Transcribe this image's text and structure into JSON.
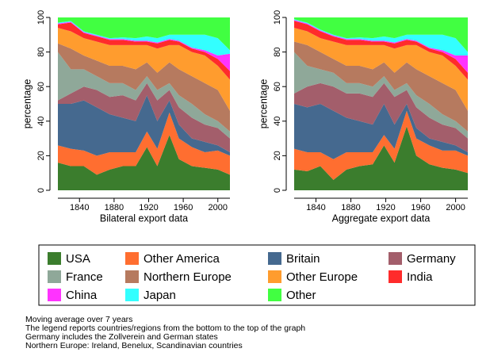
{
  "chart_data": [
    {
      "type": "area",
      "xlabel": "Bilateral export data",
      "ylabel": "percentage",
      "x": [
        1815,
        1830,
        1845,
        1860,
        1875,
        1890,
        1905,
        1918,
        1930,
        1944,
        1955,
        1970,
        1985,
        2000,
        2014
      ],
      "xlim": [
        1815,
        2014
      ],
      "xticks": [
        1840,
        1880,
        1920,
        1960,
        2000
      ],
      "ylim": [
        0,
        100
      ],
      "yticks": [
        0,
        20,
        40,
        60,
        80,
        100
      ],
      "series": [
        {
          "name": "USA",
          "color": "#3b7d2d",
          "values": [
            16,
            14,
            14,
            9,
            12,
            14,
            14,
            25,
            14,
            32,
            18,
            14,
            13,
            12,
            9
          ]
        },
        {
          "name": "Other America",
          "color": "#ff6e30",
          "values": [
            10,
            10,
            9,
            11,
            10,
            8,
            8,
            9,
            10,
            13,
            12,
            11,
            9,
            11,
            11
          ]
        },
        {
          "name": "Britain",
          "color": "#45698f",
          "values": [
            24,
            26,
            29,
            28,
            22,
            20,
            18,
            21,
            16,
            7,
            8,
            5,
            6,
            3,
            2
          ]
        },
        {
          "name": "Germany",
          "color": "#a35e6b",
          "values": [
            2,
            6,
            8,
            10,
            10,
            13,
            12,
            7,
            12,
            6,
            10,
            12,
            10,
            10,
            8
          ]
        },
        {
          "name": "France",
          "color": "#8fa899",
          "values": [
            28,
            14,
            10,
            8,
            8,
            7,
            6,
            4,
            6,
            4,
            7,
            8,
            6,
            4,
            4
          ]
        },
        {
          "name": "Northern Europe",
          "color": "#b67a5f",
          "values": [
            5,
            12,
            8,
            9,
            10,
            10,
            12,
            8,
            10,
            12,
            15,
            16,
            18,
            18,
            12
          ]
        },
        {
          "name": "Other Europe",
          "color": "#ff9c2e",
          "values": [
            9,
            10,
            10,
            11,
            12,
            12,
            14,
            10,
            14,
            10,
            14,
            14,
            16,
            14,
            18
          ]
        },
        {
          "name": "India",
          "color": "#ff2b2b",
          "values": [
            2,
            5,
            3,
            3,
            3,
            3,
            2,
            2,
            3,
            3,
            2,
            2,
            2,
            4,
            5
          ]
        },
        {
          "name": "China",
          "color": "#ff33ff",
          "values": [
            0.5,
            0.5,
            0.5,
            0.5,
            0.5,
            0.5,
            0.5,
            0.5,
            0.5,
            0.5,
            0.5,
            0.5,
            1,
            2,
            10
          ]
        },
        {
          "name": "Japan",
          "color": "#33ffff",
          "values": [
            0.5,
            0.5,
            0.5,
            0.5,
            0.5,
            1,
            1.5,
            2.5,
            2.5,
            2.5,
            3.5,
            7.5,
            9,
            10,
            2
          ]
        },
        {
          "name": "Other",
          "color": "#41ff41",
          "values": [
            3,
            2,
            8,
            10,
            12,
            11.5,
            12,
            11,
            12,
            10,
            10,
            10,
            10,
            12,
            19
          ]
        }
      ]
    },
    {
      "type": "area",
      "xlabel": "Aggregate export data",
      "ylabel": "percentage",
      "x": [
        1815,
        1830,
        1845,
        1860,
        1875,
        1890,
        1905,
        1918,
        1930,
        1944,
        1955,
        1970,
        1985,
        2000,
        2014
      ],
      "xlim": [
        1815,
        2014
      ],
      "xticks": [
        1840,
        1880,
        1920,
        1960,
        2000
      ],
      "ylim": [
        0,
        100
      ],
      "yticks": [
        0,
        20,
        40,
        60,
        80,
        100
      ],
      "series": [
        {
          "values": [
            12,
            11,
            14,
            6,
            12,
            14,
            15,
            26,
            16,
            37,
            20,
            15,
            13,
            12,
            10
          ]
        },
        {
          "values": [
            12,
            11,
            8,
            12,
            10,
            8,
            7,
            6,
            8,
            9,
            10,
            11,
            10,
            11,
            10
          ]
        },
        {
          "values": [
            26,
            26,
            28,
            28,
            20,
            18,
            16,
            18,
            14,
            4,
            6,
            4,
            5,
            3,
            2
          ]
        },
        {
          "values": [
            6,
            12,
            12,
            14,
            14,
            16,
            16,
            12,
            16,
            8,
            12,
            12,
            10,
            10,
            8
          ]
        },
        {
          "values": [
            24,
            12,
            8,
            8,
            6,
            6,
            6,
            4,
            4,
            4,
            7,
            8,
            6,
            4,
            4
          ]
        },
        {
          "values": [
            6,
            12,
            10,
            8,
            10,
            10,
            10,
            8,
            10,
            12,
            15,
            16,
            18,
            18,
            12
          ]
        },
        {
          "values": [
            8,
            8,
            8,
            10,
            12,
            12,
            14,
            10,
            14,
            10,
            14,
            14,
            16,
            14,
            18
          ]
        },
        {
          "values": [
            4,
            4,
            4,
            3,
            3,
            3,
            2,
            2,
            3,
            3,
            2,
            2,
            2,
            4,
            4
          ]
        },
        {
          "values": [
            0.5,
            0.5,
            0.5,
            0.5,
            0.5,
            0.5,
            0.5,
            0.5,
            0.5,
            0.5,
            0.5,
            0.5,
            1,
            2,
            10
          ]
        },
        {
          "values": [
            0.5,
            0.5,
            0.5,
            0.5,
            0.5,
            1,
            1.5,
            2.5,
            2.5,
            2.5,
            3.5,
            7.5,
            9,
            10,
            2
          ]
        },
        {
          "values": [
            1,
            3,
            7,
            10,
            12,
            11.5,
            12,
            11,
            12,
            10,
            10,
            10,
            10,
            12,
            20
          ]
        }
      ]
    }
  ],
  "notes": [
    "Moving average over 7 years",
    "The legend reports countries/regions from the bottom to the top of the graph",
    "Germany includes the Zollverein and German states",
    "Northern Europe: Ireland, Benelux, Scandinavian countries"
  ]
}
